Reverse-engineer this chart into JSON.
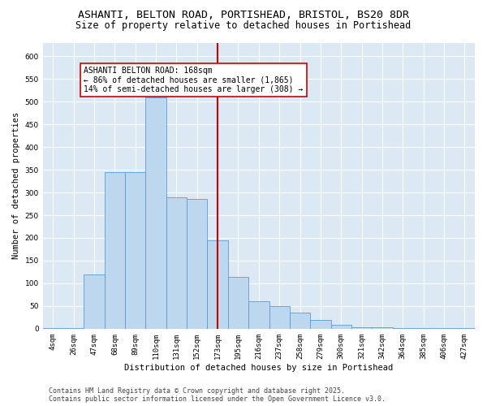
{
  "title_line1": "ASHANTI, BELTON ROAD, PORTISHEAD, BRISTOL, BS20 8DR",
  "title_line2": "Size of property relative to detached houses in Portishead",
  "xlabel": "Distribution of detached houses by size in Portishead",
  "ylabel": "Number of detached properties",
  "categories": [
    "4sqm",
    "26sqm",
    "47sqm",
    "68sqm",
    "89sqm",
    "110sqm",
    "131sqm",
    "152sqm",
    "173sqm",
    "195sqm",
    "216sqm",
    "237sqm",
    "258sqm",
    "279sqm",
    "300sqm",
    "321sqm",
    "342sqm",
    "364sqm",
    "385sqm",
    "406sqm",
    "427sqm"
  ],
  "values": [
    2,
    2,
    120,
    345,
    345,
    510,
    290,
    285,
    195,
    115,
    60,
    50,
    35,
    20,
    8,
    4,
    3,
    2,
    2,
    2,
    2
  ],
  "bar_color": "#bdd7ee",
  "bar_edge_color": "#5b9bd5",
  "bar_width": 1.0,
  "vline_x": 8.0,
  "vline_color": "#cc0000",
  "annotation_text": "ASHANTI BELTON ROAD: 168sqm\n← 86% of detached houses are smaller (1,865)\n14% of semi-detached houses are larger (308) →",
  "annotation_box_color": "#cc0000",
  "annotation_text_color": "#000000",
  "annotation_bg_color": "#ffffff",
  "ylim": [
    0,
    630
  ],
  "yticks": [
    0,
    50,
    100,
    150,
    200,
    250,
    300,
    350,
    400,
    450,
    500,
    550,
    600
  ],
  "background_color": "#dce9f5",
  "fig_background_color": "#ffffff",
  "footer_text": "Contains HM Land Registry data © Crown copyright and database right 2025.\nContains public sector information licensed under the Open Government Licence v3.0.",
  "title_fontsize": 9.5,
  "subtitle_fontsize": 8.5,
  "axis_label_fontsize": 7.5,
  "tick_fontsize": 6.5,
  "footer_fontsize": 6.0,
  "annot_fontsize": 7.0
}
